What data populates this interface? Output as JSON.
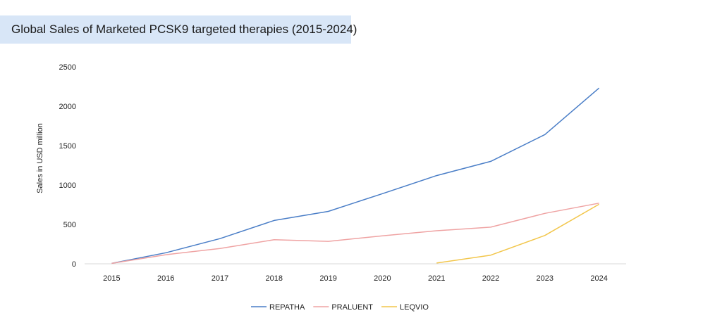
{
  "chart_data": {
    "type": "line",
    "title": "Global Sales of Marketed PCSK9 targeted therapies (2015-2024)",
    "xlabel": "",
    "ylabel": "Sales in USD million",
    "categories": [
      "2015",
      "2016",
      "2017",
      "2018",
      "2019",
      "2020",
      "2021",
      "2022",
      "2023",
      "2024"
    ],
    "ylim": [
      0,
      2500
    ],
    "yticks": [
      0,
      500,
      1000,
      1500,
      2000,
      2500
    ],
    "grid": false,
    "legend_position": "bottom-center",
    "series": [
      {
        "name": "REPATHA",
        "color": "#4a7ec7",
        "values": [
          5,
          140,
          320,
          550,
          665,
          890,
          1120,
          1300,
          1640,
          2230
        ]
      },
      {
        "name": "PRALUENT",
        "color": "#efa3a3",
        "values": [
          5,
          115,
          195,
          305,
          285,
          355,
          420,
          465,
          640,
          770
        ]
      },
      {
        "name": "LEQVIO",
        "color": "#f2c64b",
        "values": [
          null,
          null,
          null,
          null,
          null,
          null,
          10,
          110,
          360,
          755
        ]
      }
    ]
  }
}
